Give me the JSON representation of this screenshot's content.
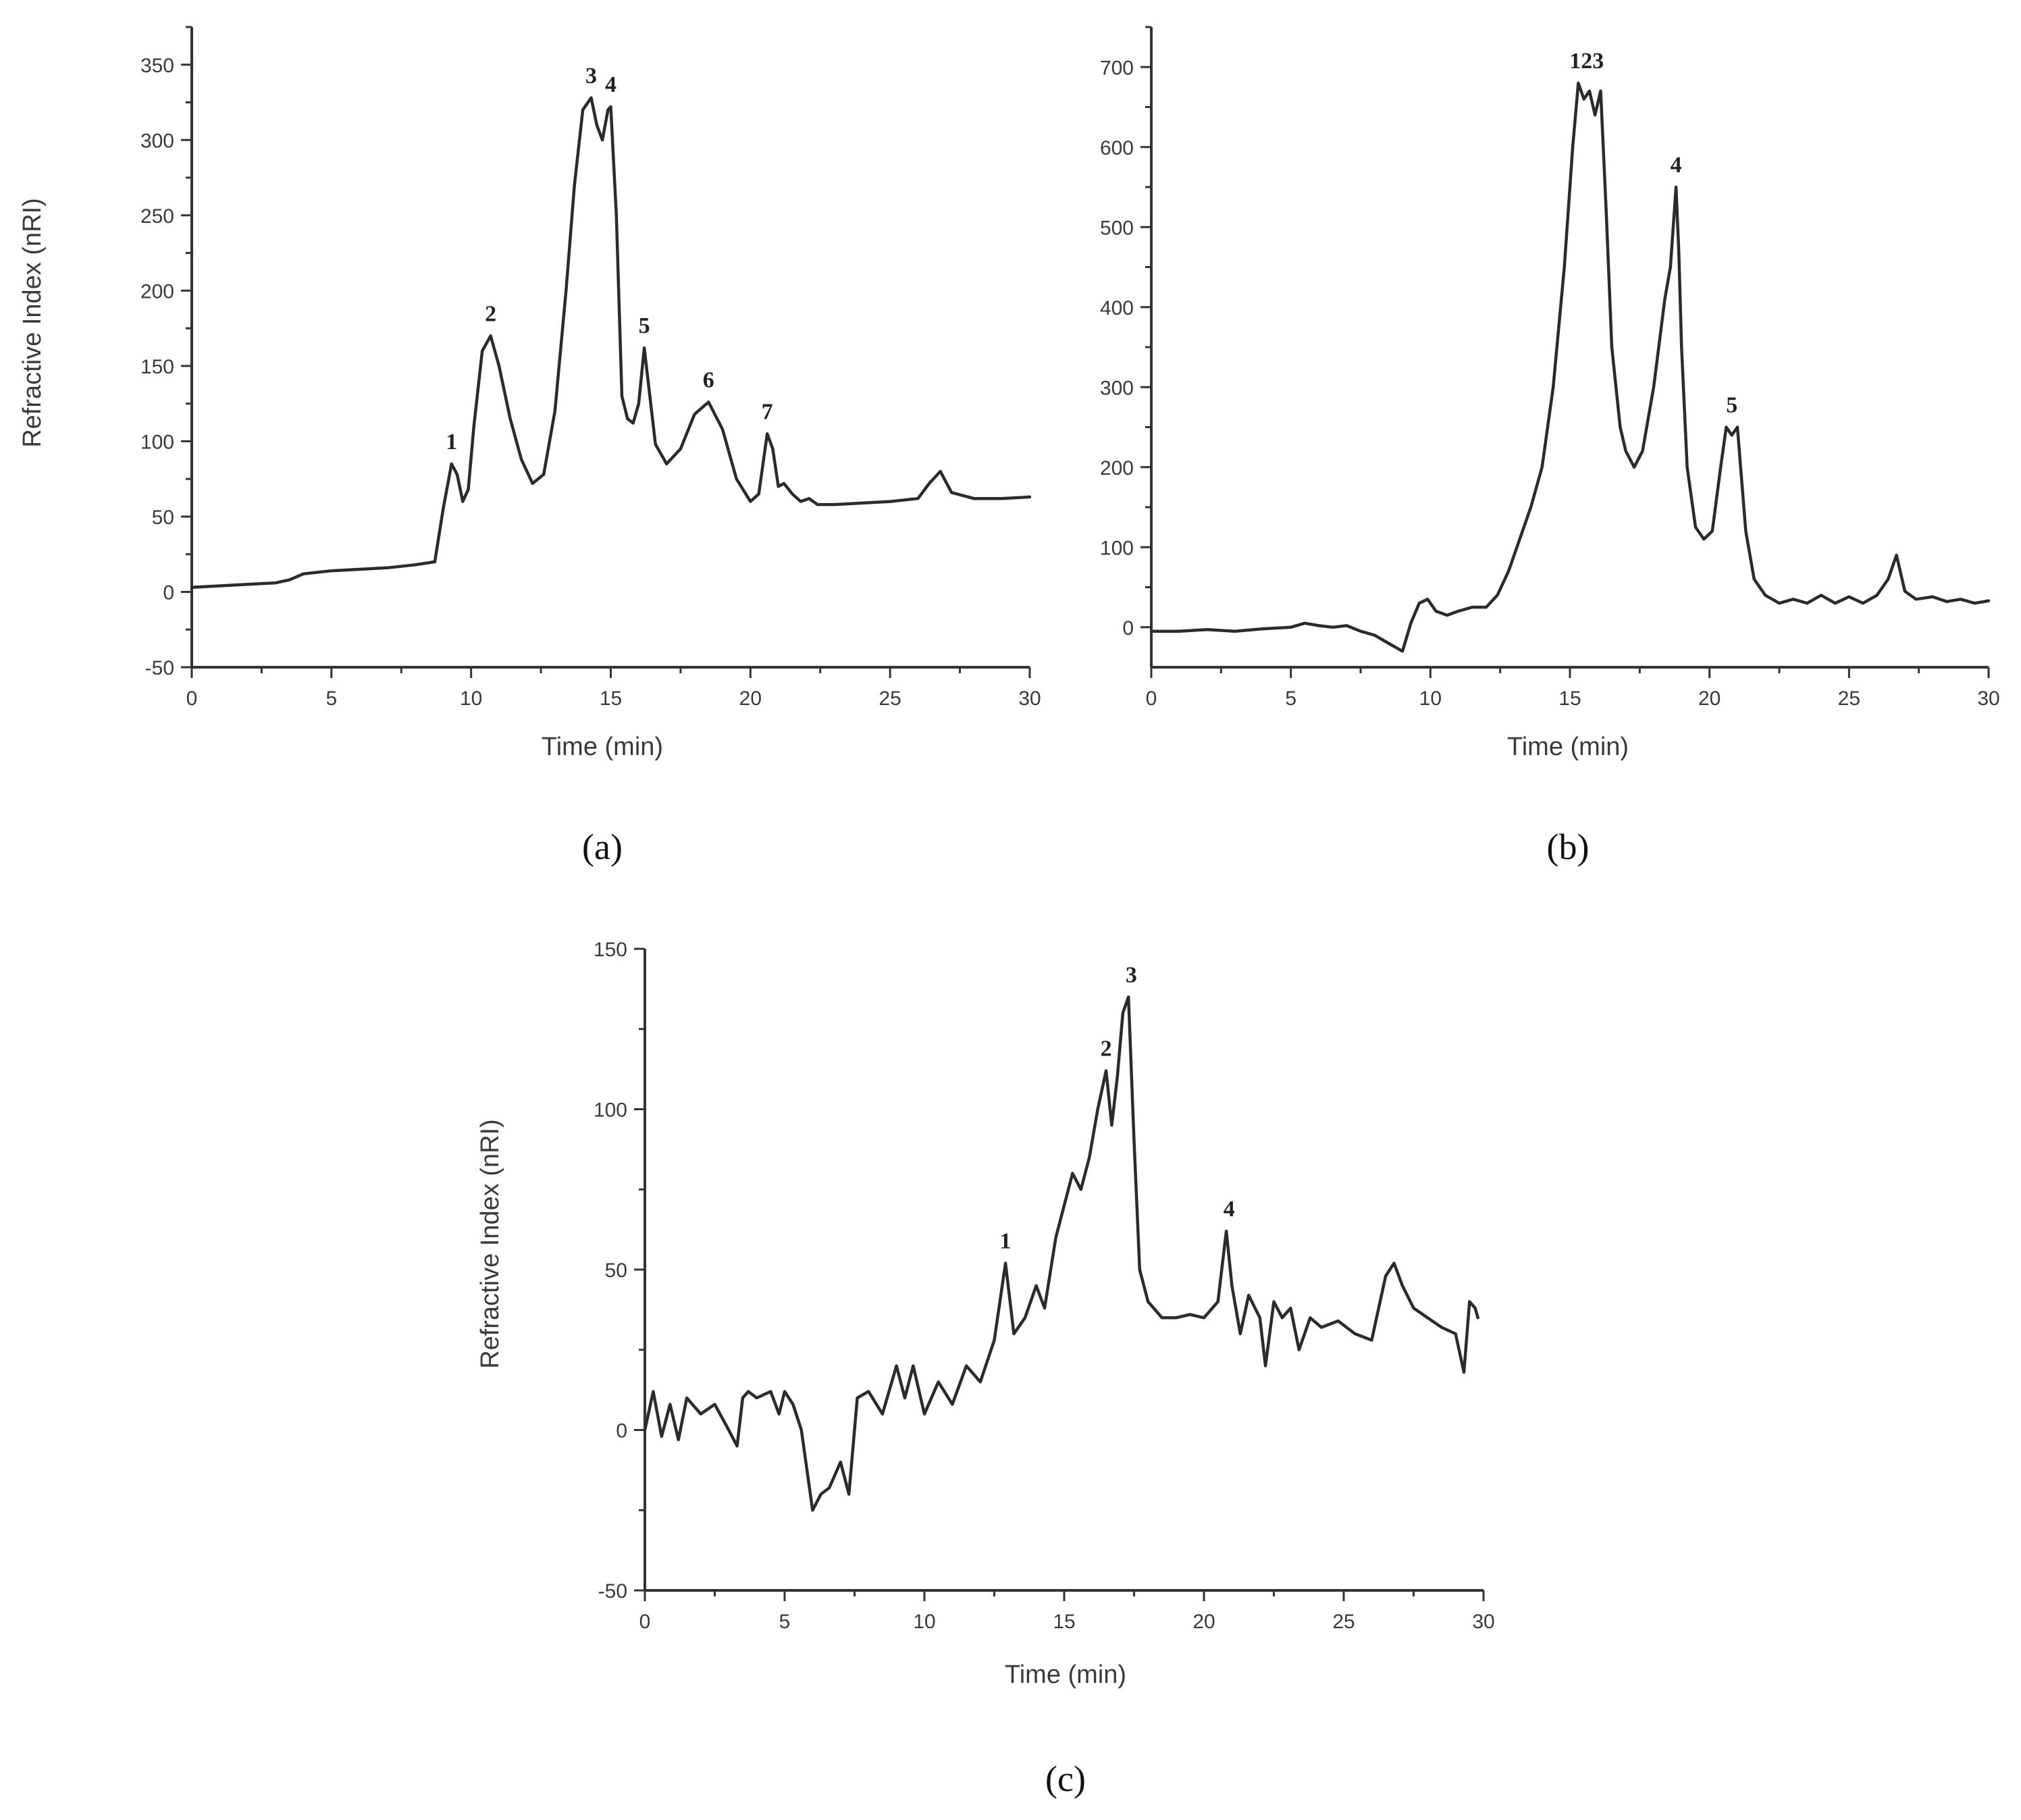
{
  "chart_data": [
    {
      "id": "a",
      "type": "line",
      "caption": "(a)",
      "xlabel": "Time (min)",
      "ylabel": "Refractive Index (nRI)",
      "xlim": [
        0,
        30
      ],
      "ylim": [
        -50,
        375
      ],
      "xticks": [
        0,
        5,
        10,
        15,
        20,
        25,
        30
      ],
      "yticks": [
        -50,
        0,
        50,
        100,
        150,
        200,
        250,
        300,
        350
      ],
      "series": [
        {
          "x": [
            0,
            1,
            2,
            3,
            3.5,
            4,
            5,
            6,
            7,
            8,
            8.7,
            9.0,
            9.3,
            9.5,
            9.7,
            9.9,
            10.1,
            10.4,
            10.7,
            11.0,
            11.4,
            11.8,
            12.2,
            12.6,
            13.0,
            13.4,
            13.7,
            14.0,
            14.3,
            14.5,
            14.7,
            14.9,
            15.0,
            15.2,
            15.4,
            15.6,
            15.8,
            16.0,
            16.2,
            16.4,
            16.6,
            17.0,
            17.5,
            18.0,
            18.5,
            19.0,
            19.5,
            20.0,
            20.3,
            20.6,
            20.8,
            21.0,
            21.2,
            21.5,
            21.8,
            22.1,
            22.4,
            23,
            24,
            25,
            26,
            26.4,
            26.8,
            27.2,
            28,
            29,
            30
          ],
          "y": [
            3,
            4,
            5,
            6,
            8,
            12,
            14,
            15,
            16,
            18,
            20,
            55,
            85,
            78,
            60,
            68,
            110,
            160,
            170,
            150,
            115,
            88,
            72,
            78,
            120,
            200,
            270,
            320,
            328,
            310,
            300,
            320,
            322,
            250,
            130,
            115,
            112,
            125,
            162,
            130,
            98,
            85,
            95,
            118,
            126,
            108,
            75,
            60,
            65,
            105,
            95,
            70,
            72,
            65,
            60,
            62,
            58,
            58,
            59,
            60,
            62,
            72,
            80,
            66,
            62,
            62,
            63
          ]
        }
      ],
      "annotations": [
        {
          "label": "1",
          "x": 9.3,
          "y": 85
        },
        {
          "label": "2",
          "x": 10.7,
          "y": 170
        },
        {
          "label": "3",
          "x": 14.3,
          "y": 328
        },
        {
          "label": "4",
          "x": 15.0,
          "y": 322
        },
        {
          "label": "5",
          "x": 16.2,
          "y": 162
        },
        {
          "label": "6",
          "x": 18.5,
          "y": 126
        },
        {
          "label": "7",
          "x": 20.6,
          "y": 105
        }
      ]
    },
    {
      "id": "b",
      "type": "line",
      "caption": "(b)",
      "xlabel": "Time (min)",
      "ylabel": "",
      "xlim": [
        0,
        30
      ],
      "ylim": [
        -50,
        750
      ],
      "xticks": [
        0,
        5,
        10,
        15,
        20,
        25,
        30
      ],
      "yticks": [
        0,
        100,
        200,
        300,
        400,
        500,
        600,
        700
      ],
      "series": [
        {
          "x": [
            0,
            1,
            2,
            3,
            4,
            5,
            5.5,
            6,
            6.5,
            7,
            7.5,
            8,
            8.5,
            9.0,
            9.3,
            9.6,
            9.9,
            10.2,
            10.6,
            11,
            11.5,
            12,
            12.4,
            12.8,
            13.2,
            13.6,
            14.0,
            14.4,
            14.8,
            15.1,
            15.3,
            15.5,
            15.7,
            15.9,
            16.1,
            16.3,
            16.5,
            16.8,
            17.0,
            17.3,
            17.6,
            18.0,
            18.4,
            18.6,
            18.8,
            18.9,
            19.0,
            19.2,
            19.5,
            19.8,
            20.1,
            20.4,
            20.6,
            20.8,
            21.0,
            21.3,
            21.6,
            22,
            22.5,
            23,
            23.5,
            24,
            24.5,
            25,
            25.5,
            26,
            26.4,
            26.7,
            27.0,
            27.4,
            28,
            28.5,
            29,
            29.5,
            30
          ],
          "y": [
            -5,
            -5,
            -3,
            -5,
            -2,
            0,
            5,
            2,
            0,
            2,
            -5,
            -10,
            -20,
            -30,
            5,
            30,
            35,
            20,
            15,
            20,
            25,
            25,
            40,
            70,
            110,
            150,
            200,
            300,
            450,
            600,
            680,
            660,
            670,
            640,
            670,
            520,
            350,
            250,
            220,
            200,
            220,
            300,
            410,
            450,
            550,
            470,
            350,
            200,
            125,
            110,
            120,
            200,
            250,
            240,
            250,
            120,
            60,
            40,
            30,
            35,
            30,
            40,
            30,
            38,
            30,
            40,
            60,
            90,
            45,
            35,
            38,
            32,
            35,
            30,
            33
          ]
        }
      ],
      "annotations": [
        {
          "label": "123",
          "x": 15.6,
          "y": 680
        },
        {
          "label": "4",
          "x": 18.8,
          "y": 550
        },
        {
          "label": "5",
          "x": 20.8,
          "y": 250
        }
      ]
    },
    {
      "id": "c",
      "type": "line",
      "caption": "(c)",
      "xlabel": "Time (min)",
      "ylabel": "Refractive Index (nRI)",
      "xlim": [
        0,
        30
      ],
      "ylim": [
        -50,
        150
      ],
      "xticks": [
        0,
        5,
        10,
        15,
        20,
        25,
        30
      ],
      "yticks": [
        -50,
        0,
        50,
        100,
        150
      ],
      "series": [
        {
          "x": [
            0,
            0.3,
            0.6,
            0.9,
            1.2,
            1.5,
            2,
            2.5,
            3,
            3.3,
            3.5,
            3.7,
            4,
            4.5,
            4.8,
            5.0,
            5.3,
            5.6,
            6.0,
            6.3,
            6.6,
            7.0,
            7.3,
            7.6,
            8.0,
            8.5,
            9.0,
            9.3,
            9.6,
            10.0,
            10.5,
            11.0,
            11.5,
            12.0,
            12.5,
            12.9,
            13.2,
            13.6,
            14.0,
            14.3,
            14.7,
            15.0,
            15.3,
            15.6,
            15.9,
            16.2,
            16.5,
            16.7,
            16.9,
            17.1,
            17.3,
            17.5,
            17.7,
            18.0,
            18.5,
            19,
            19.5,
            20,
            20.5,
            20.8,
            21.0,
            21.3,
            21.6,
            22.0,
            22.2,
            22.5,
            22.8,
            23.1,
            23.4,
            23.8,
            24.2,
            24.8,
            25.4,
            26.0,
            26.5,
            26.8,
            27.1,
            27.5,
            28,
            28.5,
            29.0,
            29.3,
            29.5,
            29.7,
            29.8
          ],
          "y": [
            0,
            12,
            -2,
            8,
            -3,
            10,
            5,
            8,
            0,
            -5,
            10,
            12,
            10,
            12,
            5,
            12,
            8,
            0,
            -25,
            -20,
            -18,
            -10,
            -20,
            10,
            12,
            5,
            20,
            10,
            20,
            5,
            15,
            8,
            20,
            15,
            28,
            52,
            30,
            35,
            45,
            38,
            60,
            70,
            80,
            75,
            85,
            100,
            112,
            95,
            110,
            130,
            135,
            90,
            50,
            40,
            35,
            35,
            36,
            35,
            40,
            62,
            45,
            30,
            42,
            35,
            20,
            40,
            35,
            38,
            25,
            35,
            32,
            34,
            30,
            28,
            48,
            52,
            45,
            38,
            35,
            32,
            30,
            18,
            40,
            38,
            35
          ]
        }
      ],
      "annotations": [
        {
          "label": "1",
          "x": 12.9,
          "y": 52
        },
        {
          "label": "2",
          "x": 16.5,
          "y": 112
        },
        {
          "label": "3",
          "x": 17.4,
          "y": 135
        },
        {
          "label": "4",
          "x": 20.9,
          "y": 62
        }
      ]
    }
  ]
}
